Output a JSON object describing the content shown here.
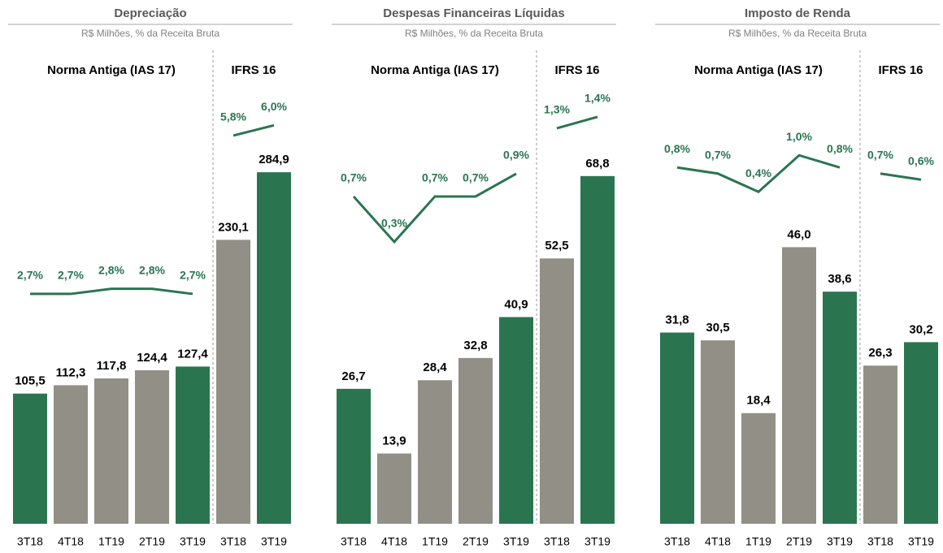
{
  "chart_data": [
    {
      "type": "bar",
      "title": "Depreciação",
      "subtitle": "R$ Milhões, % da Receita Bruta",
      "ylim": [
        0,
        385
      ],
      "y2lim": [
        -1.8,
        7.5
      ],
      "sections": [
        {
          "label": "Norma Antiga (IAS 17)",
          "categories": [
            "3T18",
            "4T18",
            "1T19",
            "2T19",
            "3T19"
          ],
          "values": [
            105.5,
            112.3,
            117.8,
            124.4,
            127.4
          ],
          "value_labels": [
            "105,5",
            "112,3",
            "117,8",
            "124,4",
            "127,4"
          ],
          "colors": [
            "#2a7550",
            "#918f86",
            "#918f86",
            "#918f86",
            "#2a7550"
          ],
          "line": {
            "color": "#2a7550",
            "values": [
              2.7,
              2.7,
              2.8,
              2.8,
              2.7
            ],
            "value_labels": [
              "2,7%",
              "2,7%",
              "2,8%",
              "2,8%",
              "2,7%"
            ]
          }
        },
        {
          "label": "IFRS 16",
          "categories": [
            "3T18",
            "3T19"
          ],
          "values": [
            230.1,
            284.9
          ],
          "value_labels": [
            "230,1",
            "284,9"
          ],
          "colors": [
            "#918f86",
            "#2a7550"
          ],
          "line": {
            "color": "#2a7550",
            "values": [
              5.8,
              6.0
            ],
            "value_labels": [
              "5,8%",
              "6,0%"
            ]
          }
        }
      ]
    },
    {
      "type": "bar",
      "title": "Despesas Financeiras Líquidas",
      "subtitle": "R$ Milhões, % da Receita Bruta",
      "ylim": [
        0,
        94
      ],
      "y2lim": [
        -2.18,
        2.0
      ],
      "sections": [
        {
          "label": "Norma Antiga (IAS 17)",
          "categories": [
            "3T18",
            "4T18",
            "1T19",
            "2T19",
            "3T19"
          ],
          "values": [
            26.7,
            13.9,
            28.4,
            32.8,
            40.9
          ],
          "value_labels": [
            "26,7",
            "13,9",
            "28,4",
            "32,8",
            "40,9"
          ],
          "colors": [
            "#2a7550",
            "#918f86",
            "#918f86",
            "#918f86",
            "#2a7550"
          ],
          "line": {
            "color": "#2a7550",
            "values": [
              0.7,
              0.3,
              0.7,
              0.7,
              0.9
            ],
            "value_labels": [
              "0,7%",
              "0,3%",
              "0,7%",
              "0,7%",
              "0,9%"
            ]
          }
        },
        {
          "label": "IFRS 16",
          "categories": [
            "3T18",
            "3T19"
          ],
          "values": [
            52.5,
            68.8
          ],
          "value_labels": [
            "52,5",
            "68,8"
          ],
          "colors": [
            "#918f86",
            "#2a7550"
          ],
          "line": {
            "color": "#2a7550",
            "values": [
              1.3,
              1.4
            ],
            "value_labels": [
              "1,3%",
              "1,4%"
            ]
          }
        }
      ]
    },
    {
      "type": "bar",
      "title": "Imposto de Renda",
      "subtitle": "R$ Milhões, % da Receita Bruta",
      "ylim": [
        0,
        79
      ],
      "y2lim": [
        -5.05,
        2.75
      ],
      "sections": [
        {
          "label": "Norma Antiga (IAS 17)",
          "categories": [
            "3T18",
            "4T18",
            "1T19",
            "2T19",
            "3T19"
          ],
          "values": [
            31.8,
            30.5,
            18.4,
            46.0,
            38.6
          ],
          "value_labels": [
            "31,8",
            "30,5",
            "18,4",
            "46,0",
            "38,6"
          ],
          "colors": [
            "#2a7550",
            "#918f86",
            "#918f86",
            "#918f86",
            "#2a7550"
          ],
          "line": {
            "color": "#2a7550",
            "values": [
              0.8,
              0.7,
              0.4,
              1.0,
              0.8
            ],
            "value_labels": [
              "0,8%",
              "0,7%",
              "0,4%",
              "1,0%",
              "0,8%"
            ]
          }
        },
        {
          "label": "IFRS 16",
          "categories": [
            "3T18",
            "3T19"
          ],
          "values": [
            26.3,
            30.2
          ],
          "value_labels": [
            "26,3",
            "30,2"
          ],
          "colors": [
            "#918f86",
            "#2a7550"
          ],
          "line": {
            "color": "#2a7550",
            "values": [
              0.7,
              0.6
            ],
            "value_labels": [
              "0,7%",
              "0,6%"
            ]
          }
        }
      ]
    }
  ]
}
